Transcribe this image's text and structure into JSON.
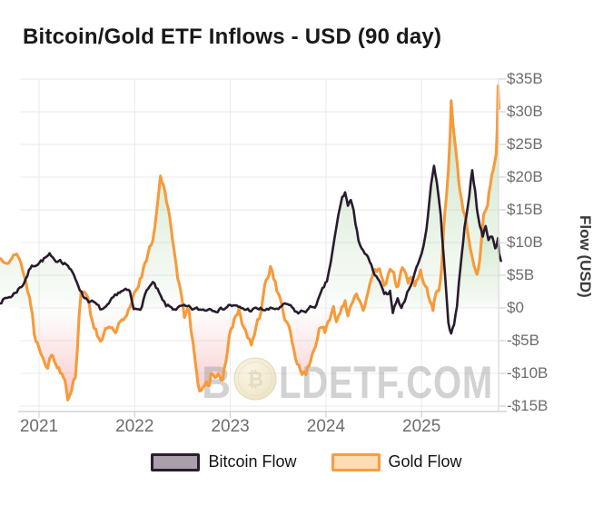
{
  "title": "Bitcoin/Gold ETF Inflows - USD (90 day)",
  "watermark": {
    "text_left": "B",
    "text_right": "LDETF.COM",
    "coin_icon": "gold-coin",
    "coin_symbol": "₿"
  },
  "legend": [
    {
      "label": "Bitcoin Flow",
      "line_color": "#2a1a2e",
      "fill_color": "#a9a0ac"
    },
    {
      "label": "Gold Flow",
      "line_color": "#f79a3a",
      "fill_color": "#fddcb6"
    }
  ],
  "colors": {
    "bitcoin_line": "#2a1a2e",
    "gold_line": "#f79a3a",
    "positive_fill": "#76b96a",
    "negative_fill": "#f09090",
    "gridline": "#eaeaea",
    "axis": "#c9c9c9",
    "tick_text": "#6d6d6d"
  },
  "chart_data": {
    "type": "line",
    "title": "Bitcoin/Gold ETF Inflows - USD (90 day)",
    "xlabel": "",
    "ylabel": "Flow (USD)",
    "legend_position": "bottom",
    "grid": true,
    "xlim": [
      2020.58,
      2025.85
    ],
    "ylim": [
      -15.8,
      35
    ],
    "x_ticks": [
      {
        "label": "2021",
        "year": 2021
      },
      {
        "label": "2022",
        "year": 2022
      },
      {
        "label": "2023",
        "year": 2023
      },
      {
        "label": "2024",
        "year": 2024
      },
      {
        "label": "2025",
        "year": 2025
      }
    ],
    "y_ticks": [
      {
        "label": "$35B",
        "value": 35
      },
      {
        "label": "$30B",
        "value": 30
      },
      {
        "label": "$25B",
        "value": 25
      },
      {
        "label": "$20B",
        "value": 20
      },
      {
        "label": "$15B",
        "value": 15
      },
      {
        "label": "$10B",
        "value": 10
      },
      {
        "label": "$5B",
        "value": 5
      },
      {
        "label": "$0",
        "value": 0
      },
      {
        "label": "-$5B",
        "value": -5
      },
      {
        "label": "-$10B",
        "value": -10
      },
      {
        "label": "-$15B",
        "value": -15
      }
    ],
    "unit": "billions USD, trailing 90-day flow",
    "series": [
      {
        "name": "Bitcoin Flow",
        "color": "#2a1a2e",
        "points": [
          [
            2020.59,
            1.0
          ],
          [
            2020.72,
            1.9
          ],
          [
            2020.83,
            3.6
          ],
          [
            2020.91,
            6.1
          ],
          [
            2020.97,
            6.8
          ],
          [
            2021.02,
            7.2
          ],
          [
            2021.11,
            8.0
          ],
          [
            2021.16,
            7.0
          ],
          [
            2021.22,
            7.5
          ],
          [
            2021.3,
            6.6
          ],
          [
            2021.35,
            5.2
          ],
          [
            2021.41,
            3.6
          ],
          [
            2021.46,
            1.9
          ],
          [
            2021.52,
            1.2
          ],
          [
            2021.57,
            0.8
          ],
          [
            2021.64,
            -0.2
          ],
          [
            2021.7,
            -0.2
          ],
          [
            2021.76,
            1.0
          ],
          [
            2021.83,
            2.4
          ],
          [
            2021.89,
            2.6
          ],
          [
            2021.95,
            2.4
          ],
          [
            2021.99,
            -0.4
          ],
          [
            2022.06,
            0.1
          ],
          [
            2022.14,
            3.1
          ],
          [
            2022.19,
            3.8
          ],
          [
            2022.24,
            2.6
          ],
          [
            2022.29,
            1.0
          ],
          [
            2022.33,
            0.3
          ],
          [
            2022.4,
            -0.1
          ],
          [
            2022.5,
            0.1
          ],
          [
            2022.6,
            -0.2
          ],
          [
            2022.7,
            -0.3
          ],
          [
            2022.8,
            0.0
          ],
          [
            2022.9,
            -0.2
          ],
          [
            2023.0,
            0.5
          ],
          [
            2023.1,
            -0.1
          ],
          [
            2023.2,
            -0.3
          ],
          [
            2023.3,
            -0.2
          ],
          [
            2023.4,
            -0.3
          ],
          [
            2023.52,
            0.0
          ],
          [
            2023.6,
            0.5
          ],
          [
            2023.66,
            -0.3
          ],
          [
            2023.71,
            -0.8
          ],
          [
            2023.82,
            -0.2
          ],
          [
            2023.9,
            0.5
          ],
          [
            2023.98,
            3.1
          ],
          [
            2024.01,
            4.0
          ],
          [
            2024.05,
            7.0
          ],
          [
            2024.09,
            10.5
          ],
          [
            2024.13,
            14.0
          ],
          [
            2024.17,
            16.8
          ],
          [
            2024.2,
            17.5
          ],
          [
            2024.23,
            15.8
          ],
          [
            2024.26,
            16.5
          ],
          [
            2024.29,
            14.9
          ],
          [
            2024.31,
            12.5
          ],
          [
            2024.34,
            10.3
          ],
          [
            2024.44,
            7.5
          ],
          [
            2024.51,
            5.0
          ],
          [
            2024.58,
            3.3
          ],
          [
            2024.61,
            1.7
          ],
          [
            2024.67,
            2.6
          ],
          [
            2024.7,
            -0.4
          ],
          [
            2024.75,
            1.5
          ],
          [
            2024.79,
            -0.1
          ],
          [
            2024.85,
            2.2
          ],
          [
            2024.89,
            3.8
          ],
          [
            2024.93,
            5.4
          ],
          [
            2024.98,
            7.5
          ],
          [
            2025.02,
            9.6
          ],
          [
            2025.05,
            12.0
          ],
          [
            2025.08,
            16.0
          ],
          [
            2025.1,
            19.0
          ],
          [
            2025.13,
            21.5
          ],
          [
            2025.16,
            19.5
          ],
          [
            2025.2,
            14.0
          ],
          [
            2025.23,
            8.0
          ],
          [
            2025.26,
            2.0
          ],
          [
            2025.28,
            -2.0
          ],
          [
            2025.31,
            -4.0
          ],
          [
            2025.34,
            -2.5
          ],
          [
            2025.37,
            0.5
          ],
          [
            2025.39,
            4.0
          ],
          [
            2025.42,
            8.0
          ],
          [
            2025.45,
            12.4
          ],
          [
            2025.48,
            15.4
          ],
          [
            2025.5,
            17.5
          ],
          [
            2025.53,
            21.3
          ],
          [
            2025.56,
            17.9
          ],
          [
            2025.58,
            14.7
          ],
          [
            2025.61,
            12.4
          ],
          [
            2025.64,
            11.0
          ],
          [
            2025.67,
            12.8
          ],
          [
            2025.7,
            10.3
          ],
          [
            2025.74,
            11.0
          ],
          [
            2025.77,
            9.2
          ],
          [
            2025.8,
            10.6
          ],
          [
            2025.81,
            8.5
          ],
          [
            2025.83,
            7.2
          ]
        ]
      },
      {
        "name": "Gold Flow",
        "color": "#f79a3a",
        "points": [
          [
            2020.59,
            7.5
          ],
          [
            2020.7,
            8.0
          ],
          [
            2020.8,
            7.7
          ],
          [
            2020.86,
            4.0
          ],
          [
            2020.9,
            1.7
          ],
          [
            2020.93,
            -1.0
          ],
          [
            2020.95,
            -3.9
          ],
          [
            2021.0,
            -6.0
          ],
          [
            2021.04,
            -7.1
          ],
          [
            2021.09,
            -8.5
          ],
          [
            2021.13,
            -7.1
          ],
          [
            2021.19,
            -8.8
          ],
          [
            2021.24,
            -9.8
          ],
          [
            2021.27,
            -10.3
          ],
          [
            2021.3,
            -13.4
          ],
          [
            2021.34,
            -12.0
          ],
          [
            2021.38,
            -10.3
          ],
          [
            2021.4,
            -6.0
          ],
          [
            2021.42,
            -1.0
          ],
          [
            2021.44,
            2.8
          ],
          [
            2021.47,
            3.1
          ],
          [
            2021.51,
            1.0
          ],
          [
            2021.54,
            -1.1
          ],
          [
            2021.61,
            -3.9
          ],
          [
            2021.66,
            -4.7
          ],
          [
            2021.73,
            -2.9
          ],
          [
            2021.8,
            -4.3
          ],
          [
            2021.85,
            -2.5
          ],
          [
            2021.9,
            -2.0
          ],
          [
            2021.95,
            0.3
          ],
          [
            2022.0,
            2.6
          ],
          [
            2022.04,
            4.0
          ],
          [
            2022.09,
            5.8
          ],
          [
            2022.14,
            7.8
          ],
          [
            2022.19,
            10.5
          ],
          [
            2022.23,
            15.0
          ],
          [
            2022.27,
            20.5
          ],
          [
            2022.3,
            19.0
          ],
          [
            2022.35,
            14.9
          ],
          [
            2022.38,
            11.9
          ],
          [
            2022.41,
            9.6
          ],
          [
            2022.45,
            5.0
          ],
          [
            2022.49,
            1.7
          ],
          [
            2022.52,
            -2.0
          ],
          [
            2022.57,
            -0.4
          ],
          [
            2022.59,
            -3.9
          ],
          [
            2022.63,
            -7.5
          ],
          [
            2022.68,
            -12.6
          ],
          [
            2022.75,
            -10.8
          ],
          [
            2022.78,
            -11.5
          ],
          [
            2022.8,
            -10.3
          ],
          [
            2022.84,
            -11.5
          ],
          [
            2022.89,
            -10.3
          ],
          [
            2022.92,
            -11.0
          ],
          [
            2022.97,
            -6.6
          ],
          [
            2022.99,
            -4.3
          ],
          [
            2023.04,
            -2.0
          ],
          [
            2023.09,
            -0.8
          ],
          [
            2023.14,
            -3.0
          ],
          [
            2023.18,
            -4.5
          ],
          [
            2023.22,
            -5.7
          ],
          [
            2023.27,
            -3.0
          ],
          [
            2023.32,
            -1.0
          ],
          [
            2023.36,
            3.0
          ],
          [
            2023.42,
            6.4
          ],
          [
            2023.47,
            4.0
          ],
          [
            2023.54,
            0.0
          ],
          [
            2023.63,
            -4.3
          ],
          [
            2023.7,
            -8.5
          ],
          [
            2023.75,
            -9.5
          ],
          [
            2023.79,
            -10.3
          ],
          [
            2023.84,
            -8.0
          ],
          [
            2023.89,
            -5.7
          ],
          [
            2023.93,
            -3.0
          ],
          [
            2023.96,
            -2.5
          ],
          [
            2023.99,
            -3.9
          ],
          [
            2024.04,
            -2.0
          ],
          [
            2024.08,
            -0.4
          ],
          [
            2024.11,
            -1.9
          ],
          [
            2024.15,
            -0.5
          ],
          [
            2024.2,
            1.3
          ],
          [
            2024.23,
            -0.6
          ],
          [
            2024.28,
            1.5
          ],
          [
            2024.32,
            2.4
          ],
          [
            2024.39,
            0.3
          ],
          [
            2024.44,
            2.0
          ],
          [
            2024.47,
            3.3
          ],
          [
            2024.51,
            5.0
          ],
          [
            2024.56,
            6.5
          ],
          [
            2024.61,
            4.0
          ],
          [
            2024.65,
            5.0
          ],
          [
            2024.67,
            5.4
          ],
          [
            2024.71,
            4.6
          ],
          [
            2024.74,
            3.3
          ],
          [
            2024.77,
            4.4
          ],
          [
            2024.8,
            5.8
          ],
          [
            2024.84,
            4.5
          ],
          [
            2024.86,
            4.0
          ],
          [
            2024.89,
            4.8
          ],
          [
            2024.93,
            3.6
          ],
          [
            2024.96,
            4.2
          ],
          [
            2024.99,
            5.4
          ],
          [
            2025.02,
            4.0
          ],
          [
            2025.04,
            3.3
          ],
          [
            2025.07,
            2.0
          ],
          [
            2025.09,
            1.3
          ],
          [
            2025.12,
            0.1
          ],
          [
            2025.15,
            2.0
          ],
          [
            2025.18,
            3.1
          ],
          [
            2025.21,
            6.0
          ],
          [
            2025.23,
            12.0
          ],
          [
            2025.26,
            16.9
          ],
          [
            2025.28,
            21.1
          ],
          [
            2025.3,
            27.0
          ],
          [
            2025.31,
            31.8
          ],
          [
            2025.33,
            28.0
          ],
          [
            2025.36,
            23.7
          ],
          [
            2025.39,
            19.3
          ],
          [
            2025.42,
            16.8
          ],
          [
            2025.45,
            14.2
          ],
          [
            2025.48,
            11.7
          ],
          [
            2025.51,
            8.6
          ],
          [
            2025.55,
            6.4
          ],
          [
            2025.58,
            5.7
          ],
          [
            2025.61,
            8.0
          ],
          [
            2025.63,
            11.0
          ],
          [
            2025.65,
            14.4
          ],
          [
            2025.69,
            16.5
          ],
          [
            2025.72,
            18.9
          ],
          [
            2025.75,
            21.1
          ],
          [
            2025.78,
            23.5
          ],
          [
            2025.79,
            27.0
          ],
          [
            2025.8,
            33.9
          ],
          [
            2025.81,
            30.5
          ]
        ]
      }
    ]
  }
}
